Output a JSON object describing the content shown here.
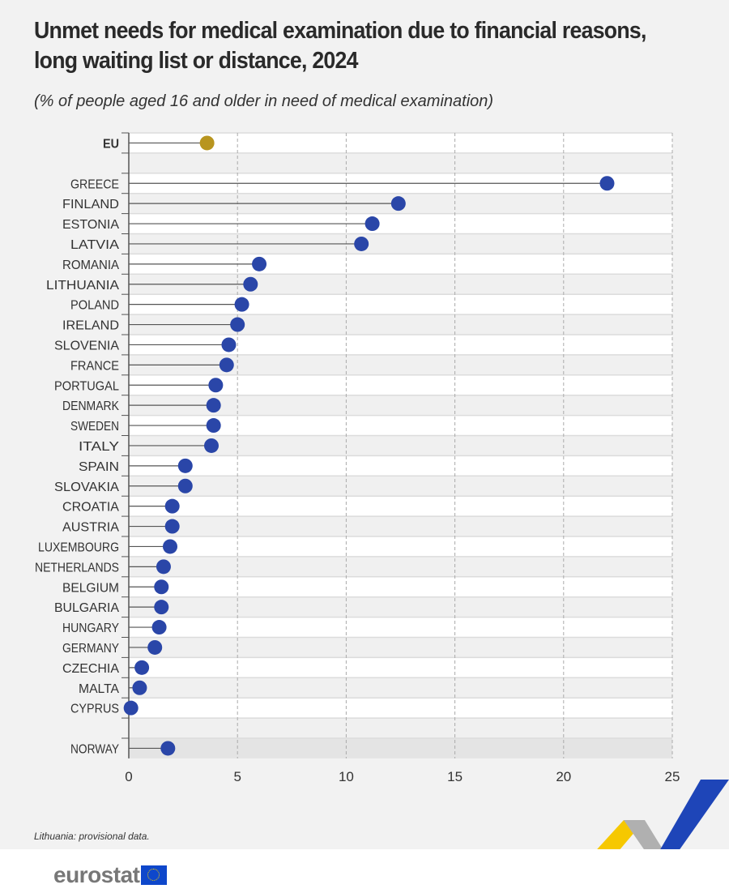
{
  "chart_data": {
    "type": "lollipop",
    "title": "Unmet needs for medical examination due to financial reasons, long waiting list or distance, 2024",
    "subtitle": "(% of people aged 16 and older in need of medical examination)",
    "xlim": [
      0,
      25
    ],
    "xticks": [
      "0",
      "5",
      "10",
      "15",
      "20",
      "25"
    ],
    "grid": "vertical dashed",
    "categories": [
      "EU",
      "",
      "GREECE",
      "FINLAND",
      "ESTONIA",
      "LATVIA",
      "ROMANIA",
      "LITHUANIA",
      "POLAND",
      "IRELAND",
      "SLOVENIA",
      "FRANCE",
      "PORTUGAL",
      "DENMARK",
      "SWEDEN",
      "ITALY",
      "SPAIN",
      "SLOVAKIA",
      "CROATIA",
      "AUSTRIA",
      "LUXEMBOURG",
      "NETHERLANDS",
      "BELGIUM",
      "BULGARIA",
      "HUNGARY",
      "GERMANY",
      "CZECHIA",
      "MALTA",
      "CYPRUS",
      "",
      "NORWAY"
    ],
    "values": [
      3.6,
      null,
      22.0,
      12.4,
      11.2,
      10.7,
      6.0,
      5.6,
      5.2,
      5.0,
      4.6,
      4.5,
      4.0,
      3.9,
      3.9,
      3.8,
      2.6,
      2.6,
      2.0,
      2.0,
      1.9,
      1.6,
      1.5,
      1.5,
      1.4,
      1.2,
      0.6,
      0.5,
      0.1,
      null,
      1.8
    ],
    "colors": {
      "eu": "#b8951f",
      "country": "#2a46a8",
      "stem": "#555555"
    }
  },
  "note": "Lithuania: provisional data.",
  "logo": "eurostat"
}
